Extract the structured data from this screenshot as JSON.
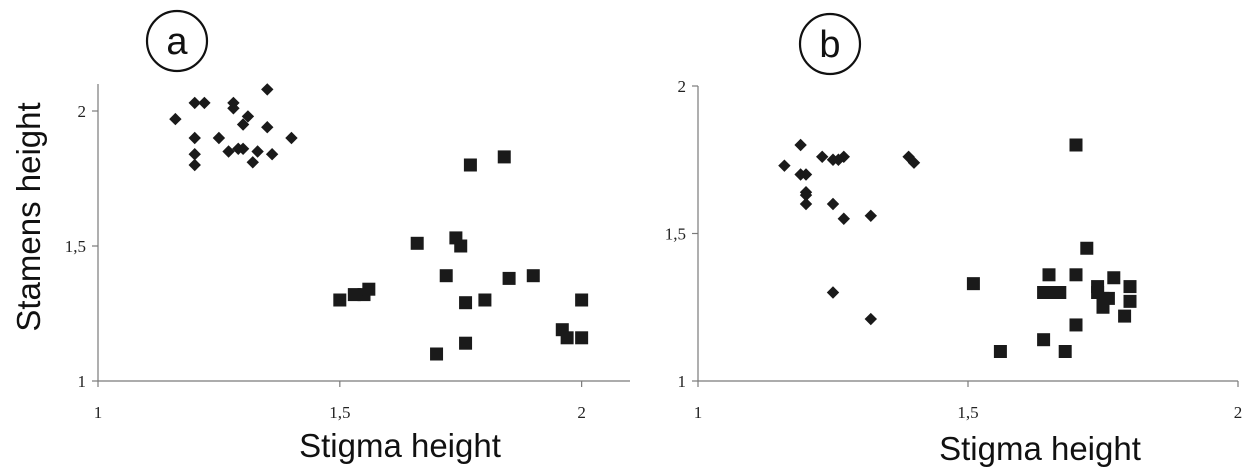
{
  "chart_data": [
    {
      "type": "scatter",
      "panel_label": "a",
      "xlabel": "Stigma height",
      "ylabel": "Stamens height",
      "xlim": [
        1,
        2.1
      ],
      "ylim": [
        1,
        2.1
      ],
      "xticks": [
        1,
        1.5,
        2
      ],
      "yticks": [
        1,
        1.5,
        2
      ],
      "xtick_labels": [
        "1",
        "1,5",
        "2"
      ],
      "ytick_labels": [
        "1",
        "1,5",
        "2"
      ],
      "grid": false,
      "series": [
        {
          "marker": "diamond",
          "color": "#1a1a1a",
          "points": [
            [
              1.16,
              1.97
            ],
            [
              1.2,
              2.03
            ],
            [
              1.22,
              2.03
            ],
            [
              1.28,
              2.03
            ],
            [
              1.35,
              2.08
            ],
            [
              1.28,
              2.01
            ],
            [
              1.31,
              1.98
            ],
            [
              1.3,
              1.95
            ],
            [
              1.35,
              1.94
            ],
            [
              1.2,
              1.9
            ],
            [
              1.25,
              1.9
            ],
            [
              1.4,
              1.9
            ],
            [
              1.27,
              1.85
            ],
            [
              1.3,
              1.86
            ],
            [
              1.33,
              1.85
            ],
            [
              1.36,
              1.84
            ],
            [
              1.2,
              1.84
            ],
            [
              1.2,
              1.8
            ],
            [
              1.32,
              1.81
            ],
            [
              1.29,
              1.86
            ]
          ]
        },
        {
          "marker": "square",
          "color": "#1a1a1a",
          "points": [
            [
              1.77,
              1.8
            ],
            [
              1.84,
              1.83
            ],
            [
              1.66,
              1.51
            ],
            [
              1.74,
              1.53
            ],
            [
              1.75,
              1.5
            ],
            [
              1.5,
              1.3
            ],
            [
              1.53,
              1.32
            ],
            [
              1.55,
              1.32
            ],
            [
              1.56,
              1.34
            ],
            [
              1.72,
              1.39
            ],
            [
              1.85,
              1.38
            ],
            [
              1.9,
              1.39
            ],
            [
              1.76,
              1.29
            ],
            [
              1.8,
              1.3
            ],
            [
              2.0,
              1.3
            ],
            [
              1.96,
              1.19
            ],
            [
              1.97,
              1.16
            ],
            [
              2.0,
              1.16
            ],
            [
              1.76,
              1.14
            ],
            [
              1.7,
              1.1
            ]
          ]
        }
      ]
    },
    {
      "type": "scatter",
      "panel_label": "b",
      "xlabel": "Stigma height",
      "ylabel": "",
      "xlim": [
        1,
        2
      ],
      "ylim": [
        1,
        2
      ],
      "xticks": [
        1,
        1.5,
        2
      ],
      "yticks": [
        1,
        1.5,
        2
      ],
      "xtick_labels": [
        "1",
        "1,5",
        "2"
      ],
      "ytick_labels": [
        "1",
        "1,5",
        "2"
      ],
      "grid": false,
      "series": [
        {
          "marker": "diamond",
          "color": "#1a1a1a",
          "points": [
            [
              1.19,
              1.8
            ],
            [
              1.16,
              1.73
            ],
            [
              1.19,
              1.7
            ],
            [
              1.2,
              1.7
            ],
            [
              1.23,
              1.76
            ],
            [
              1.25,
              1.75
            ],
            [
              1.27,
              1.76
            ],
            [
              1.26,
              1.75
            ],
            [
              1.39,
              1.76
            ],
            [
              1.4,
              1.74
            ],
            [
              1.2,
              1.64
            ],
            [
              1.2,
              1.63
            ],
            [
              1.2,
              1.6
            ],
            [
              1.25,
              1.6
            ],
            [
              1.27,
              1.55
            ],
            [
              1.32,
              1.56
            ],
            [
              1.25,
              1.3
            ],
            [
              1.32,
              1.21
            ]
          ]
        },
        {
          "marker": "square",
          "color": "#1a1a1a",
          "points": [
            [
              1.7,
              1.8
            ],
            [
              1.72,
              1.45
            ],
            [
              1.65,
              1.36
            ],
            [
              1.7,
              1.36
            ],
            [
              1.77,
              1.35
            ],
            [
              1.51,
              1.33
            ],
            [
              1.64,
              1.3
            ],
            [
              1.66,
              1.3
            ],
            [
              1.67,
              1.3
            ],
            [
              1.74,
              1.32
            ],
            [
              1.74,
              1.3
            ],
            [
              1.75,
              1.28
            ],
            [
              1.76,
              1.28
            ],
            [
              1.75,
              1.25
            ],
            [
              1.8,
              1.32
            ],
            [
              1.8,
              1.27
            ],
            [
              1.79,
              1.22
            ],
            [
              1.7,
              1.19
            ],
            [
              1.64,
              1.14
            ],
            [
              1.56,
              1.1
            ],
            [
              1.68,
              1.1
            ]
          ]
        }
      ]
    }
  ]
}
